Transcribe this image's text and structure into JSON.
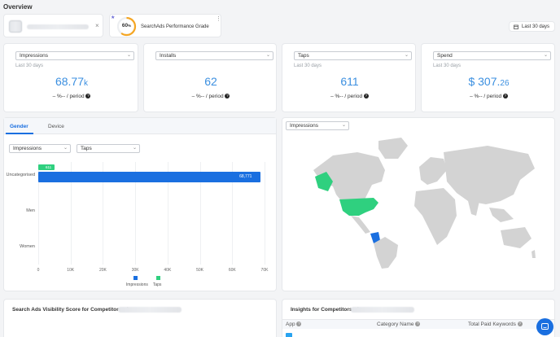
{
  "header": {
    "title": "Overview"
  },
  "app_chip": {
    "close_glyph": "×"
  },
  "grade": {
    "value": "60",
    "unit": "%",
    "label": "SearchAds Performance Grade",
    "star": "★",
    "menu": "⋮",
    "percent": 0.6,
    "color": "#f5a623"
  },
  "date_range": {
    "label": "Last 30 days",
    "icon": "calendar-icon"
  },
  "metrics": [
    {
      "select": "Impressions",
      "sub": "Last 30 days",
      "value": "68.77",
      "suffix": "k",
      "period": "– %-- / period"
    },
    {
      "select": "Installs",
      "sub": "Last 30 days",
      "value": "62",
      "suffix": "",
      "period": "– %-- / period"
    },
    {
      "select": "Taps",
      "sub": "Last 30 days",
      "value": "611",
      "suffix": "",
      "period": "– %-- / period"
    },
    {
      "select": "Spend",
      "sub": "Last 30 days",
      "value": "$ 307.",
      "suffix": "26",
      "period": "– %-- / period"
    }
  ],
  "breakdown": {
    "tabs": [
      "Gender",
      "Device"
    ],
    "active_tab": "Gender",
    "metric_select_1": "Impressions",
    "metric_select_2": "Taps"
  },
  "chart_data": {
    "type": "bar",
    "orientation": "horizontal",
    "categories": [
      "Uncategorised",
      "Men",
      "Women"
    ],
    "series": [
      {
        "name": "Impressions",
        "values": [
          68771,
          0,
          0
        ],
        "color": "#1a6fe0",
        "labels": [
          "68,771",
          "",
          ""
        ]
      },
      {
        "name": "Taps",
        "values": [
          611,
          0,
          0
        ],
        "color": "#2fd07f",
        "labels": [
          "611",
          "",
          ""
        ]
      }
    ],
    "xlim": [
      0,
      70000
    ],
    "xticks": [
      "0",
      "10K",
      "20K",
      "30K",
      "40K",
      "50K",
      "60K",
      "70K"
    ],
    "legend": "bottom"
  },
  "map": {
    "metric_select": "Impressions",
    "highlight": "#2fd07f",
    "low": "#2f6fe0",
    "land": "#d3d3d3"
  },
  "bottom_left": {
    "title": "Search Ads Visibility Score for Competitors of"
  },
  "bottom_right": {
    "title": "Insights for Competitors of",
    "columns": [
      "App",
      "Category Name",
      "Total Paid Keywords"
    ]
  },
  "chat": {
    "icon": "chat-icon"
  }
}
